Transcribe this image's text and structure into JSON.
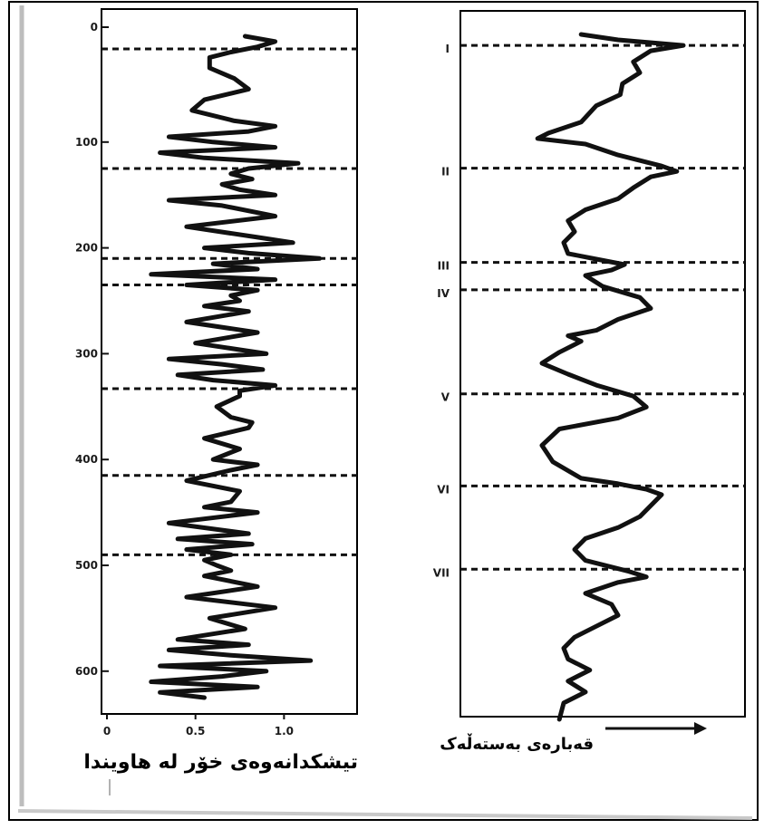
{
  "colors": {
    "ink": "#111111",
    "paper": "#ffffff",
    "scan_edge": "#bdbdbd"
  },
  "chart_data": [
    {
      "type": "line",
      "orientation": "depth-log",
      "xlabel": "تیشکدانەوەی خۆر لە هاویندا",
      "x_tick_labels": [
        "0",
        "0.5",
        "1.0"
      ],
      "xlim": [
        0,
        1.3
      ],
      "y_tick_labels": [
        "0",
        "100",
        "200",
        "300",
        "400",
        "500",
        "600"
      ],
      "ylim": [
        0,
        625
      ],
      "ylabel": "",
      "grid": false,
      "boundary_depths": [
        12,
        125,
        210,
        235,
        333,
        415,
        490
      ],
      "series": [
        {
          "depth": [
            0,
            5,
            10,
            15,
            20,
            30,
            40,
            50,
            60,
            70,
            80,
            85,
            90,
            95,
            100,
            105,
            110,
            115,
            120,
            125,
            130,
            135,
            140,
            145,
            150,
            155,
            160,
            170,
            180,
            190,
            195,
            200,
            205,
            210,
            215,
            220,
            225,
            230,
            235,
            240,
            245,
            250,
            255,
            260,
            270,
            280,
            290,
            300,
            305,
            310,
            315,
            320,
            325,
            330,
            335,
            340,
            350,
            360,
            365,
            370,
            380,
            390,
            400,
            405,
            410,
            420,
            430,
            440,
            445,
            450,
            460,
            470,
            475,
            480,
            485,
            490,
            495,
            500,
            505,
            510,
            520,
            530,
            540,
            550,
            560,
            570,
            575,
            580,
            585,
            590,
            595,
            600,
            605,
            610,
            615,
            620,
            625
          ],
          "value": [
            0.78,
            0.95,
            0.85,
            0.7,
            0.58,
            0.58,
            0.72,
            0.8,
            0.55,
            0.48,
            0.72,
            0.95,
            0.8,
            0.35,
            0.6,
            0.95,
            0.3,
            0.55,
            1.08,
            0.8,
            0.7,
            0.82,
            0.65,
            0.75,
            0.95,
            0.35,
            0.65,
            0.95,
            0.45,
            0.85,
            1.05,
            0.55,
            0.8,
            1.2,
            0.6,
            0.85,
            0.25,
            0.95,
            0.45,
            0.85,
            0.7,
            0.75,
            0.55,
            0.8,
            0.45,
            0.85,
            0.5,
            0.9,
            0.35,
            0.65,
            0.88,
            0.4,
            0.6,
            0.95,
            0.75,
            0.75,
            0.62,
            0.7,
            0.82,
            0.8,
            0.55,
            0.75,
            0.6,
            0.85,
            0.7,
            0.45,
            0.75,
            0.7,
            0.55,
            0.85,
            0.35,
            0.8,
            0.4,
            0.82,
            0.45,
            0.7,
            0.55,
            0.62,
            0.7,
            0.55,
            0.85,
            0.45,
            0.95,
            0.58,
            0.78,
            0.4,
            0.8,
            0.35,
            0.7,
            1.15,
            0.3,
            0.9,
            0.65,
            0.25,
            0.85,
            0.3,
            0.55
          ]
        }
      ]
    },
    {
      "type": "line",
      "orientation": "depth-log",
      "xlabel": "قەبارەی بەستەڵەک",
      "x_tick_labels": [],
      "y_tick_labels": [
        "I",
        "II",
        "III",
        "IV",
        "V",
        "VI",
        "VII"
      ],
      "ylim": [
        0,
        625
      ],
      "ylabel": "",
      "grid": false,
      "boundary_depths": [
        10,
        122,
        208,
        233,
        328,
        412,
        488
      ],
      "series": [
        {
          "depth": [
            0,
            5,
            10,
            15,
            25,
            35,
            45,
            55,
            65,
            80,
            90,
            95,
            100,
            110,
            120,
            125,
            130,
            140,
            150,
            160,
            170,
            180,
            190,
            200,
            205,
            210,
            215,
            220,
            230,
            240,
            250,
            260,
            270,
            275,
            280,
            290,
            300,
            310,
            320,
            330,
            340,
            350,
            360,
            375,
            390,
            405,
            410,
            415,
            420,
            430,
            440,
            450,
            460,
            470,
            480,
            490,
            495,
            500,
            510,
            520,
            530,
            540,
            550,
            560,
            570,
            580,
            590,
            600,
            610,
            625
          ],
          "value": [
            0.38,
            0.55,
            0.85,
            0.7,
            0.62,
            0.65,
            0.57,
            0.56,
            0.45,
            0.38,
            0.23,
            0.18,
            0.4,
            0.55,
            0.75,
            0.82,
            0.7,
            0.62,
            0.55,
            0.4,
            0.32,
            0.35,
            0.3,
            0.32,
            0.45,
            0.58,
            0.52,
            0.4,
            0.48,
            0.65,
            0.7,
            0.55,
            0.45,
            0.32,
            0.38,
            0.28,
            0.2,
            0.32,
            0.45,
            0.62,
            0.68,
            0.55,
            0.28,
            0.2,
            0.25,
            0.38,
            0.55,
            0.68,
            0.75,
            0.7,
            0.65,
            0.55,
            0.4,
            0.35,
            0.4,
            0.6,
            0.68,
            0.55,
            0.4,
            0.52,
            0.55,
            0.45,
            0.35,
            0.3,
            0.32,
            0.42,
            0.32,
            0.4,
            0.3,
            0.28
          ]
        }
      ]
    }
  ]
}
